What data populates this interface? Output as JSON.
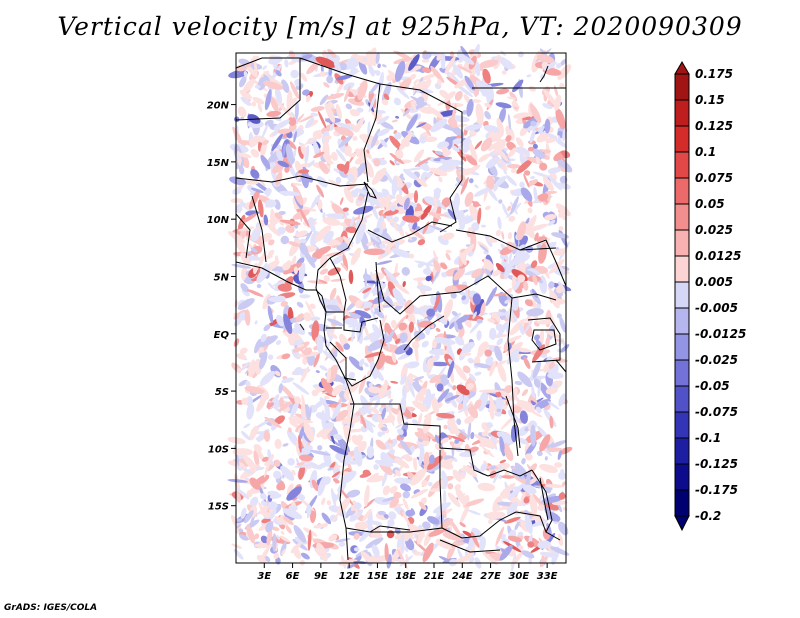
{
  "title": "Vertical velocity [m/s] at 925hPa, VT: 2020090309",
  "footer": "GrADS: IGES/COLA",
  "map": {
    "lon_range": [
      0,
      35
    ],
    "lat_range": [
      -20,
      24.5
    ],
    "lat_ticks": [
      "20N",
      "15N",
      "10N",
      "5N",
      "EQ",
      "5S",
      "10S",
      "15S"
    ],
    "lat_values": [
      20,
      15,
      10,
      5,
      0,
      -5,
      -10,
      -15
    ],
    "lon_ticks": [
      "3E",
      "6E",
      "9E",
      "12E",
      "15E",
      "18E",
      "21E",
      "24E",
      "27E",
      "30E",
      "33E"
    ],
    "lon_values": [
      3,
      6,
      9,
      12,
      15,
      18,
      21,
      24,
      27,
      30,
      33
    ]
  },
  "colorbar": {
    "labels": [
      "0.175",
      "0.15",
      "0.125",
      "0.1",
      "0.075",
      "0.05",
      "0.025",
      "0.0125",
      "0.005",
      "-0.005",
      "-0.0125",
      "-0.025",
      "-0.05",
      "-0.075",
      "-0.1",
      "-0.125",
      "-0.175",
      "-0.2"
    ],
    "colors": [
      "#a01414",
      "#be1e1e",
      "#d42b2b",
      "#e24848",
      "#ec6a6a",
      "#f38e8e",
      "#f8b2b2",
      "#fcd4d4",
      "#ffffff",
      "#d6d6f6",
      "#b6b6ee",
      "#9494e4",
      "#7272d8",
      "#5252c8",
      "#3434b6",
      "#1e1ea2",
      "#0c0c8c",
      "#000070"
    ]
  }
}
